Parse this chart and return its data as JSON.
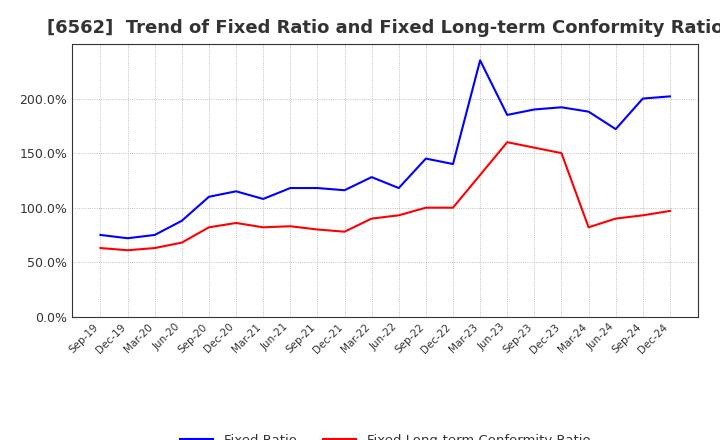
{
  "title": "[6562]  Trend of Fixed Ratio and Fixed Long-term Conformity Ratio",
  "x_labels": [
    "Sep-19",
    "Dec-19",
    "Mar-20",
    "Jun-20",
    "Sep-20",
    "Dec-20",
    "Mar-21",
    "Jun-21",
    "Sep-21",
    "Dec-21",
    "Mar-22",
    "Jun-22",
    "Sep-22",
    "Dec-22",
    "Mar-23",
    "Jun-23",
    "Sep-23",
    "Dec-23",
    "Mar-24",
    "Jun-24",
    "Sep-24",
    "Dec-24"
  ],
  "fixed_ratio": [
    75,
    72,
    75,
    88,
    110,
    115,
    108,
    118,
    118,
    116,
    128,
    118,
    145,
    140,
    235,
    185,
    190,
    192,
    188,
    172,
    200,
    202
  ],
  "fixed_lt_ratio": [
    63,
    61,
    63,
    68,
    82,
    86,
    82,
    83,
    80,
    78,
    90,
    93,
    100,
    100,
    130,
    160,
    155,
    150,
    82,
    90,
    93,
    97
  ],
  "fixed_ratio_color": "#0000FF",
  "fixed_lt_ratio_color": "#FF0000",
  "ylim": [
    0,
    250
  ],
  "yticks": [
    0,
    50,
    100,
    150,
    200
  ],
  "background_color": "#ffffff",
  "grid_color": "#aaaaaa",
  "title_fontsize": 13,
  "legend_labels": [
    "Fixed Ratio",
    "Fixed Long-term Conformity Ratio"
  ]
}
